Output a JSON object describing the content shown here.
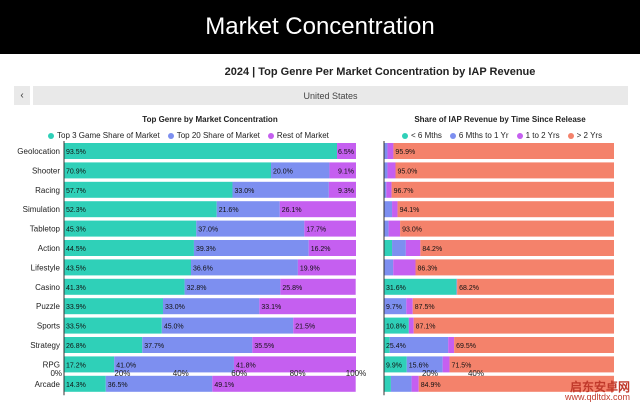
{
  "banner_title": "Market Concentration",
  "chart_title": "2024 | Top Genre Per Market Concentration by IAP Revenue",
  "region": {
    "prev_label": "‹",
    "selected": "United States"
  },
  "watermark": {
    "name": "启东安卓网",
    "url": "www.qdltdx.com"
  },
  "colors": {
    "top3": "#2fd0b8",
    "top20": "#7d8ff0",
    "rest": "#c55ff0",
    "lt6m": "#2fd0b8",
    "m6to1y": "#7d8ff0",
    "y1to2": "#c55ff0",
    "gt2y": "#f4826b"
  },
  "chart_data": [
    {
      "type": "bar",
      "stacked": true,
      "orientation": "horizontal",
      "title": "Top Genre by Market Concentration",
      "categories": [
        "Geolocation",
        "Shooter",
        "Racing",
        "Simulation",
        "Tabletop",
        "Action",
        "Lifestyle",
        "Casino",
        "Puzzle",
        "Sports",
        "Strategy",
        "RPG",
        "Arcade"
      ],
      "series": [
        {
          "name": "Top 3 Game Share of Market",
          "color_key": "top3",
          "values": [
            93.5,
            70.9,
            57.7,
            52.3,
            45.3,
            44.5,
            43.5,
            41.3,
            33.9,
            33.5,
            26.8,
            17.2,
            14.3
          ]
        },
        {
          "name": "Top 20 Share of Market",
          "color_key": "top20",
          "values": [
            0,
            20.0,
            33.0,
            21.6,
            37.0,
            39.3,
            36.6,
            32.8,
            33.0,
            45.0,
            37.7,
            41.0,
            36.5
          ]
        },
        {
          "name": "Rest of Market",
          "color_key": "rest",
          "values": [
            6.5,
            9.1,
            9.3,
            26.1,
            17.7,
            16.2,
            19.9,
            25.8,
            33.1,
            21.5,
            35.5,
            41.8,
            49.1
          ]
        }
      ],
      "xlim": [
        0,
        100
      ],
      "xticks": [
        "0%",
        "20%",
        "40%",
        "60%",
        "80%",
        "100%"
      ],
      "legend": "top"
    },
    {
      "type": "bar",
      "stacked": true,
      "orientation": "horizontal",
      "title": "Share of IAP Revenue by Time Since Release",
      "categories": [
        "Geolocation",
        "Shooter",
        "Racing",
        "Simulation",
        "Tabletop",
        "Action",
        "Lifestyle",
        "Casino",
        "Puzzle",
        "Sports",
        "Strategy",
        "RPG",
        "Arcade"
      ],
      "series": [
        {
          "name": "< 6 Mths",
          "color_key": "lt6m",
          "values": [
            0,
            0,
            0,
            0,
            0,
            3.5,
            0,
            31.6,
            0,
            10.8,
            2.5,
            9.9,
            3.0
          ]
        },
        {
          "name": "6 Mths to 1 Yr",
          "color_key": "m6to1y",
          "values": [
            1.5,
            1.5,
            1.0,
            3.5,
            2.0,
            6.0,
            4.0,
            0,
            9.7,
            0,
            25.4,
            15.6,
            9.0
          ]
        },
        {
          "name": "1 to 2 Yrs",
          "color_key": "y1to2",
          "values": [
            2.6,
            3.5,
            2.3,
            2.4,
            5.0,
            6.3,
            9.7,
            0.2,
            2.8,
            2.1,
            2.6,
            3.0,
            3.1
          ]
        },
        {
          "name": "> 2 Yrs",
          "color_key": "gt2y",
          "values": [
            95.9,
            95.0,
            96.7,
            94.1,
            93.0,
            84.2,
            86.3,
            68.2,
            87.5,
            87.1,
            69.5,
            71.5,
            84.9
          ]
        }
      ],
      "labels": [
        [
          "95.9%"
        ],
        [
          "95.0%"
        ],
        [
          "96.7%"
        ],
        [
          "94.1%"
        ],
        [
          "93.0%"
        ],
        [
          "84.2%"
        ],
        [
          "86.3%"
        ],
        [
          "31.6%",
          "68.2%"
        ],
        [
          "9.7%",
          "87.5%"
        ],
        [
          "10.8%",
          "87.1%"
        ],
        [
          "25.4%",
          "69.5%"
        ],
        [
          "9.9%",
          "15.6%",
          "71.5%"
        ],
        [
          "84.9%"
        ]
      ],
      "xticks": [
        "20%",
        "40%"
      ],
      "legend": "top"
    }
  ]
}
